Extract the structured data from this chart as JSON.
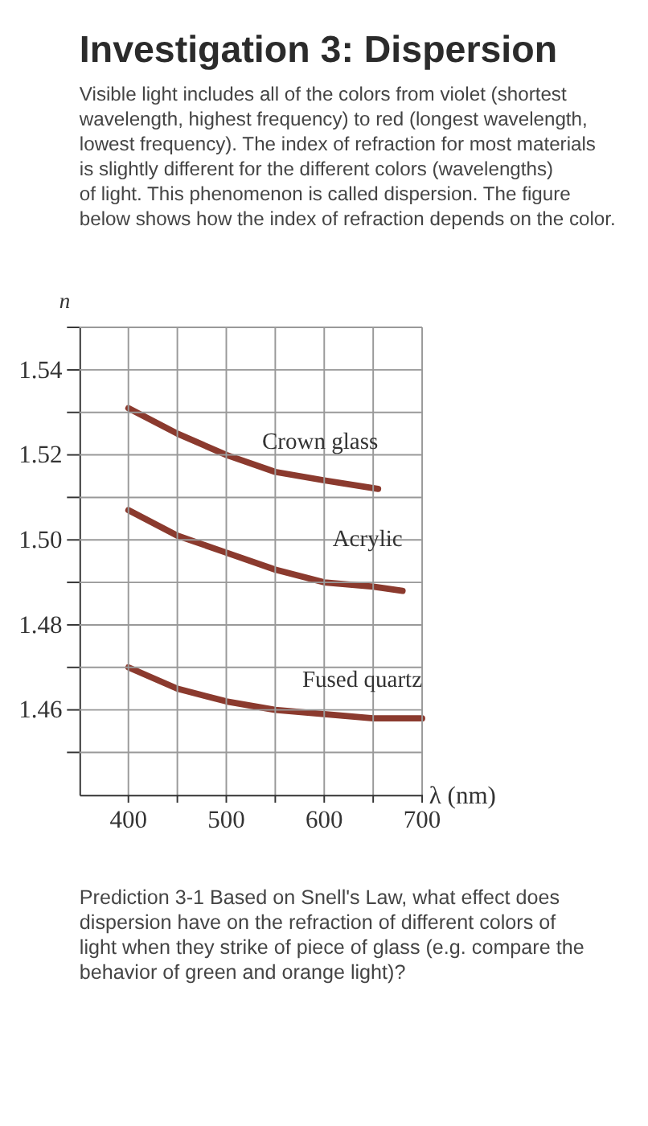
{
  "chart_data": {
    "type": "line",
    "title": "Investigation 3: Dispersion",
    "subtitle": "Visible light includes all of the colors from violet (shortest wavelength, highest frequency) to red (longest wavelength, lowest frequency).  The index of refraction for most materials is slightly different for the different colors (wavelengths) of light.  This phenomenon is called dispersion.  The figure below shows how the index of refraction depends on the color.",
    "xlabel": "λ (nm)",
    "ylabel": "n",
    "annotations": [
      "Prediction 3-1 Based on Snell's Law, what effect does dispersion have on the refraction of different colors of light when they strike of piece of glass (e.g. compare the behavior of green and orange light)?"
    ],
    "series": [
      {
        "name": "Crown glass",
        "color": "#8b3a2e",
        "x": [
          400,
          450,
          500,
          550,
          600,
          655
        ],
        "values": [
          1.531,
          1.525,
          1.52,
          1.516,
          1.514,
          1.512
        ]
      },
      {
        "name": "Acrylic",
        "color": "#8b3a2e",
        "x": [
          400,
          450,
          500,
          550,
          600,
          650,
          680
        ],
        "values": [
          1.507,
          1.501,
          1.497,
          1.493,
          1.49,
          1.489,
          1.488
        ]
      },
      {
        "name": "Fused quartz",
        "color": "#8b3a2e",
        "x": [
          400,
          450,
          500,
          550,
          600,
          650,
          700
        ],
        "values": [
          1.47,
          1.465,
          1.462,
          1.46,
          1.459,
          1.458,
          1.458
        ]
      }
    ],
    "xlim": [
      350,
      700
    ],
    "xticks": [
      400,
      {
        "value": 450,
        "label": null
      },
      500,
      {
        "value": 550,
        "label": null
      },
      600,
      {
        "value": 650,
        "label": null
      },
      700
    ],
    "ylim": [
      1.44,
      1.55
    ],
    "yticks": [
      {
        "value": 1.45,
        "label": null
      },
      1.46,
      {
        "value": 1.47,
        "label": null
      },
      1.48,
      {
        "value": 1.49,
        "label": null
      },
      {
        "value": 1.5,
        "label": "1.50"
      },
      {
        "value": 1.51,
        "label": null
      },
      1.52,
      {
        "value": 1.53,
        "label": null
      },
      1.54,
      {
        "value": 1.55,
        "label": null
      }
    ],
    "grid": true,
    "legend": false,
    "marker": "none",
    "line_style": "solid"
  }
}
